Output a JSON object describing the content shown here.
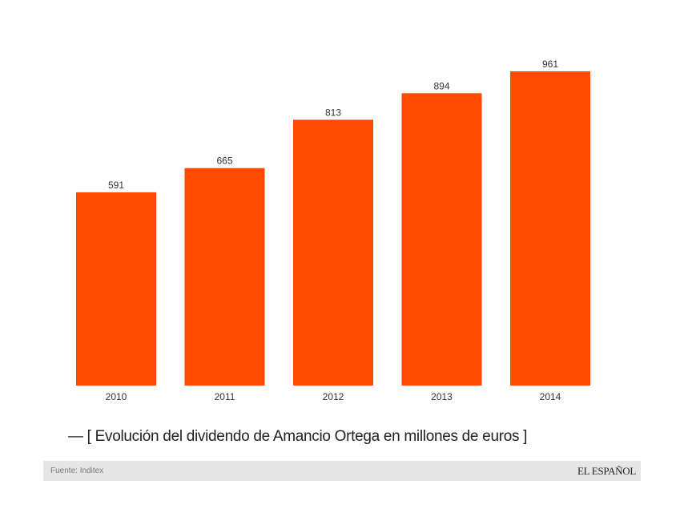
{
  "chart_data": {
    "type": "bar",
    "categories": [
      "2010",
      "2011",
      "2012",
      "2013",
      "2014"
    ],
    "values": [
      591,
      665,
      813,
      894,
      961
    ],
    "data_labels": [
      "591",
      "665",
      "813",
      "894",
      "961"
    ],
    "title": "— [ Evolución del dividendo de Amancio Ortega en millones de euros ]",
    "xlabel": "",
    "ylabel": "",
    "ylim": [
      0,
      961
    ],
    "grid": false,
    "bar_color": "#FF4B00"
  },
  "footer": {
    "source": "Fuente: Inditex",
    "logo": "EL ESPAÑOL"
  }
}
